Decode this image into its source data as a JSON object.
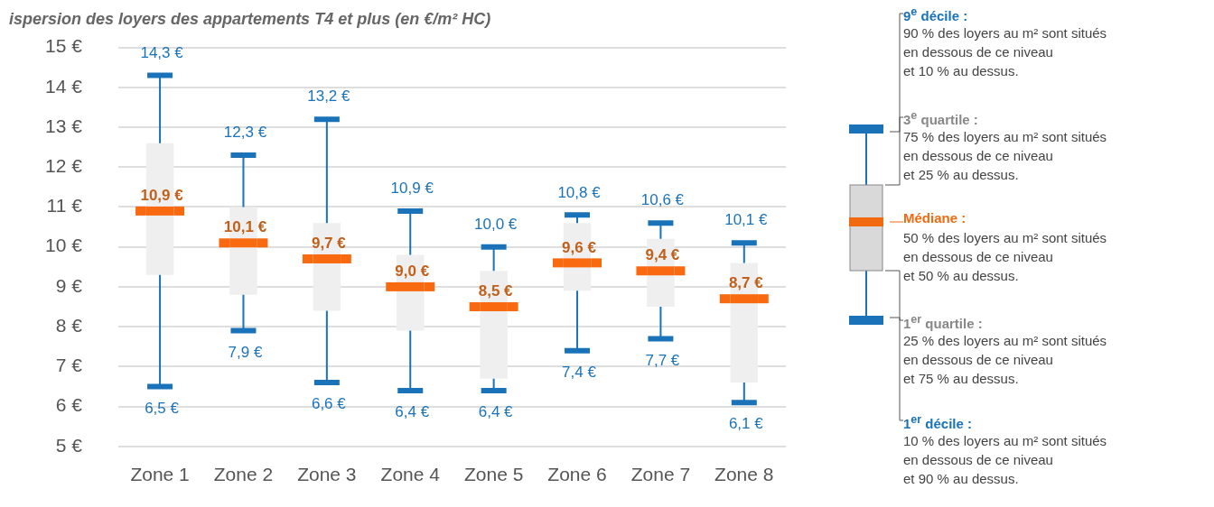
{
  "chart_data": {
    "type": "box",
    "title": "ispersion des loyers des appartements T4 et plus (en €/m² HC)",
    "categories": [
      "Zone 1",
      "Zone 2",
      "Zone 3",
      "Zone 4",
      "Zone 5",
      "Zone 6",
      "Zone 7",
      "Zone 8"
    ],
    "series": [
      {
        "color": "#efefef",
        "boxes": [
          {
            "low": 6.5,
            "q1": 9.3,
            "median": 10.9,
            "q3": 12.6,
            "high": 14.3
          },
          {
            "low": 7.9,
            "q1": 8.8,
            "median": 10.1,
            "q3": 11.0,
            "high": 12.3
          },
          {
            "low": 6.6,
            "q1": 8.4,
            "median": 9.7,
            "q3": 10.6,
            "high": 13.2
          },
          {
            "low": 6.4,
            "q1": 7.9,
            "median": 9.0,
            "q3": 9.8,
            "high": 10.9
          },
          {
            "low": 6.4,
            "q1": 6.7,
            "median": 8.5,
            "q3": 9.4,
            "high": 10.0
          },
          {
            "low": 7.4,
            "q1": 8.9,
            "median": 9.6,
            "q3": 10.6,
            "high": 10.8
          },
          {
            "low": 7.7,
            "q1": 8.5,
            "median": 9.4,
            "q3": 10.2,
            "high": 10.6
          },
          {
            "low": 6.1,
            "q1": 6.6,
            "median": 8.7,
            "q3": 9.6,
            "high": 10.1
          }
        ]
      }
    ],
    "ylim": [
      5,
      15
    ],
    "yticks": [
      {
        "value": 5,
        "label": "5 €"
      },
      {
        "value": 6,
        "label": "6 €"
      },
      {
        "value": 7,
        "label": "7 €"
      },
      {
        "value": 8,
        "label": "8 €"
      },
      {
        "value": 9,
        "label": "9 €"
      },
      {
        "value": 10,
        "label": "10 €"
      },
      {
        "value": 11,
        "label": "11 €"
      },
      {
        "value": 12,
        "label": "12 €"
      },
      {
        "value": 13,
        "label": "13 €"
      },
      {
        "value": 14,
        "label": "14 €"
      },
      {
        "value": 15,
        "label": "15 €"
      }
    ],
    "grid": "y",
    "annotations": [
      {
        "text": "14,3 €",
        "x": "Zone 1",
        "y": 14.3
      },
      {
        "text": "10,9 €",
        "x": "Zone 1",
        "y": 10.9
      },
      {
        "text": "6,5 €",
        "x": "Zone 1",
        "y": 6.5
      },
      {
        "text": "12,3 €",
        "x": "Zone 2",
        "y": 12.3
      },
      {
        "text": "10,1 €",
        "x": "Zone 2",
        "y": 10.1
      },
      {
        "text": "7,9 €",
        "x": "Zone 2",
        "y": 7.9
      },
      {
        "text": "13,2 €",
        "x": "Zone 3",
        "y": 13.2
      },
      {
        "text": "9,7 €",
        "x": "Zone 3",
        "y": 9.7
      },
      {
        "text": "6,6 €",
        "x": "Zone 3",
        "y": 6.6
      },
      {
        "text": "10,9 €",
        "x": "Zone 4",
        "y": 10.9
      },
      {
        "text": "9,0 €",
        "x": "Zone 4",
        "y": 9.0
      },
      {
        "text": "6,4 €",
        "x": "Zone 4",
        "y": 6.4
      },
      {
        "text": "10,0 €",
        "x": "Zone 5",
        "y": 10.0
      },
      {
        "text": "8,5 €",
        "x": "Zone 5",
        "y": 8.5
      },
      {
        "text": "6,4 €",
        "x": "Zone 5",
        "y": 6.4
      },
      {
        "text": "10,8 €",
        "x": "Zone 6",
        "y": 10.8
      },
      {
        "text": "9,6 €",
        "x": "Zone 6",
        "y": 9.6
      },
      {
        "text": "7,4 €",
        "x": "Zone 6",
        "y": 7.4
      },
      {
        "text": "10,6 €",
        "x": "Zone 7",
        "y": 10.6
      },
      {
        "text": "9,4 €",
        "x": "Zone 7",
        "y": 9.4
      },
      {
        "text": "7,7 €",
        "x": "Zone 7",
        "y": 7.7
      },
      {
        "text": "10,1 €",
        "x": "Zone 8",
        "y": 10.1
      },
      {
        "text": "8,7 €",
        "x": "Zone 8",
        "y": 8.7
      },
      {
        "text": "6,1 €",
        "x": "Zone 8",
        "y": 6.1
      },
      "9$^{e}$ décile :",
      "90 % des loyers au m² sont situés\nen dessous de ce niveau\net 10 % au dessus.",
      "3$^{e}$ quartile :",
      "75 % des loyers au m² sont situés\nen dessous de ce niveau\net 25 % au dessus.",
      "Médiane :",
      "50 % des loyers au m² sont situés\nen dessous de ce niveau\net 50 % au dessus.",
      "1$^{er}$ quartile :",
      "25 % des loyers au m² sont situés\nen dessous de ce niveau\net 75 % au dessus.",
      "1$^{er}$ décile :",
      "10 % des loyers au m² sont situés\nen dessous de ce niveau\net 90 % au dessus."
    ]
  }
}
